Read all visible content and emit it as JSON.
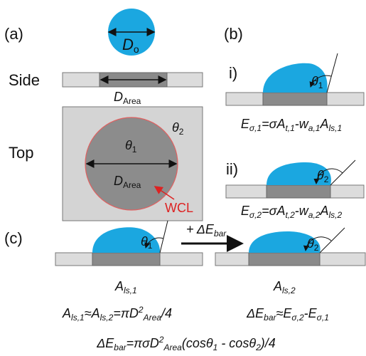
{
  "labels": {
    "a": "(a)",
    "b": "(b)",
    "c": "(c)",
    "side": "Side",
    "top": "Top",
    "i": "i)",
    "ii": "ii)",
    "wcl": "WCL"
  },
  "d_o": [
    "D",
    "o"
  ],
  "d_area_side": [
    "D",
    "Area"
  ],
  "d_area_top": [
    "D",
    "Area"
  ],
  "theta2_top": [
    "θ",
    "2"
  ],
  "theta1_top": [
    "θ",
    "1"
  ],
  "theta_b1": [
    "θ",
    "1"
  ],
  "theta_b2": [
    "θ",
    "2"
  ],
  "theta_c1": [
    "θ",
    "1"
  ],
  "theta_c2": [
    "θ",
    "2"
  ],
  "arrow_label": [
    "+ ΔE",
    "bar"
  ],
  "a_ls1": [
    "A",
    "ls,1"
  ],
  "a_ls2": [
    "A",
    "ls,2"
  ],
  "eq1": [
    "E",
    "σ,1",
    "=σA",
    "t,1",
    "-w",
    "a,1",
    "A",
    "ls,1"
  ],
  "eq2": [
    "E",
    "σ,2",
    "=σA",
    "t,2",
    "-w",
    "a,2",
    "A",
    "ls,2"
  ],
  "eq3": [
    "A",
    "ls,1",
    "≈A",
    "ls,2",
    "=πD",
    "2",
    "Area",
    "/4"
  ],
  "eq4": [
    "ΔE",
    "bar",
    "≈E",
    "σ,2",
    "-E",
    "σ,1"
  ],
  "eq5": [
    "ΔE",
    "bar",
    "=πσD",
    "2",
    "Area",
    "(cosθ",
    "1",
    " - cosθ",
    "2",
    ")/4"
  ]
}
